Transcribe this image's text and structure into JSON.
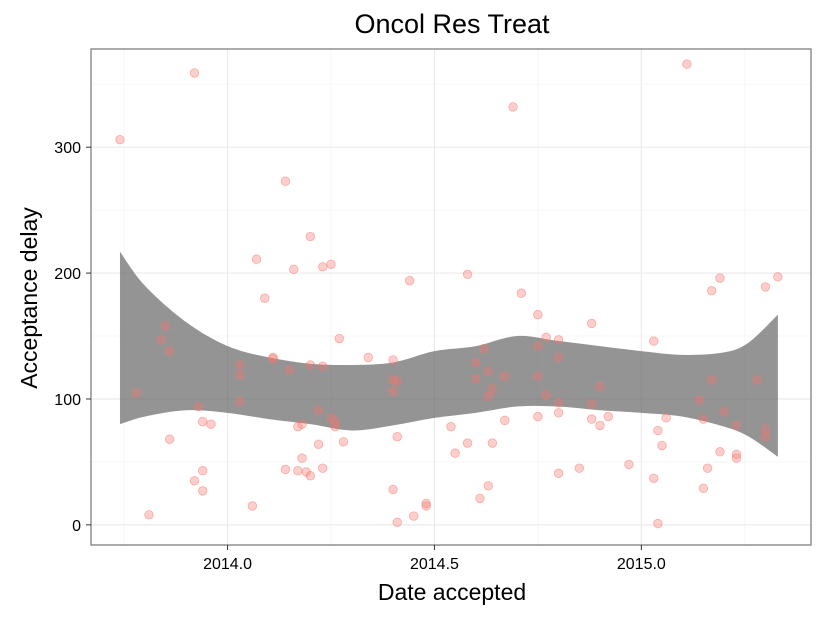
{
  "chart_data": {
    "type": "scatter",
    "title": "Oncol Res Treat",
    "xlabel": "Date accepted",
    "ylabel": "Acceptance delay",
    "xlim": [
      2013.67,
      2015.41
    ],
    "ylim": [
      -16,
      378
    ],
    "x_ticks": [
      2014.0,
      2014.5,
      2015.0
    ],
    "x_tick_labels": [
      "2014.0",
      "2014.5",
      "2015.0"
    ],
    "y_ticks": [
      0,
      100,
      200,
      300
    ],
    "y_tick_labels": [
      "0",
      "100",
      "200",
      "300"
    ],
    "grid": true,
    "point_color": "#f8766d",
    "band_color": "#5a5a5a",
    "points": [
      [
        2013.74,
        306
      ],
      [
        2013.78,
        105
      ],
      [
        2013.81,
        8
      ],
      [
        2013.84,
        147
      ],
      [
        2013.85,
        158
      ],
      [
        2013.86,
        138
      ],
      [
        2013.86,
        68
      ],
      [
        2013.92,
        359
      ],
      [
        2013.92,
        35
      ],
      [
        2013.93,
        94
      ],
      [
        2013.94,
        82
      ],
      [
        2013.94,
        43
      ],
      [
        2013.94,
        27
      ],
      [
        2013.96,
        80
      ],
      [
        2014.03,
        127
      ],
      [
        2014.03,
        119
      ],
      [
        2014.03,
        98
      ],
      [
        2014.06,
        15
      ],
      [
        2014.07,
        211
      ],
      [
        2014.09,
        180
      ],
      [
        2014.11,
        133
      ],
      [
        2014.11,
        132
      ],
      [
        2014.14,
        273
      ],
      [
        2014.14,
        44
      ],
      [
        2014.15,
        123
      ],
      [
        2014.16,
        203
      ],
      [
        2014.17,
        78
      ],
      [
        2014.17,
        43
      ],
      [
        2014.18,
        80
      ],
      [
        2014.18,
        53
      ],
      [
        2014.19,
        42
      ],
      [
        2014.2,
        229
      ],
      [
        2014.2,
        127
      ],
      [
        2014.2,
        39
      ],
      [
        2014.22,
        64
      ],
      [
        2014.22,
        91
      ],
      [
        2014.23,
        205
      ],
      [
        2014.23,
        126
      ],
      [
        2014.23,
        45
      ],
      [
        2014.25,
        207
      ],
      [
        2014.25,
        85
      ],
      [
        2014.26,
        82
      ],
      [
        2014.26,
        78
      ],
      [
        2014.27,
        148
      ],
      [
        2014.28,
        66
      ],
      [
        2014.34,
        133
      ],
      [
        2014.4,
        115
      ],
      [
        2014.4,
        131
      ],
      [
        2014.4,
        106
      ],
      [
        2014.4,
        28
      ],
      [
        2014.41,
        114
      ],
      [
        2014.41,
        70
      ],
      [
        2014.41,
        2
      ],
      [
        2014.44,
        194
      ],
      [
        2014.45,
        7
      ],
      [
        2014.48,
        17
      ],
      [
        2014.48,
        15
      ],
      [
        2014.54,
        78
      ],
      [
        2014.55,
        57
      ],
      [
        2014.58,
        199
      ],
      [
        2014.58,
        65
      ],
      [
        2014.6,
        129
      ],
      [
        2014.6,
        116
      ],
      [
        2014.61,
        21
      ],
      [
        2014.62,
        140
      ],
      [
        2014.63,
        122
      ],
      [
        2014.63,
        102
      ],
      [
        2014.63,
        31
      ],
      [
        2014.64,
        108
      ],
      [
        2014.64,
        65
      ],
      [
        2014.67,
        118
      ],
      [
        2014.67,
        83
      ],
      [
        2014.69,
        332
      ],
      [
        2014.71,
        184
      ],
      [
        2014.75,
        167
      ],
      [
        2014.75,
        142
      ],
      [
        2014.75,
        118
      ],
      [
        2014.75,
        86
      ],
      [
        2014.77,
        149
      ],
      [
        2014.77,
        103
      ],
      [
        2014.8,
        147
      ],
      [
        2014.8,
        133
      ],
      [
        2014.8,
        97
      ],
      [
        2014.8,
        89
      ],
      [
        2014.8,
        41
      ],
      [
        2014.85,
        45
      ],
      [
        2014.88,
        160
      ],
      [
        2014.88,
        96
      ],
      [
        2014.88,
        84
      ],
      [
        2014.9,
        110
      ],
      [
        2014.9,
        79
      ],
      [
        2014.92,
        86
      ],
      [
        2014.97,
        48
      ],
      [
        2015.03,
        146
      ],
      [
        2015.03,
        37
      ],
      [
        2015.04,
        75
      ],
      [
        2015.04,
        1
      ],
      [
        2015.05,
        63
      ],
      [
        2015.06,
        85
      ],
      [
        2015.11,
        366
      ],
      [
        2015.14,
        99
      ],
      [
        2015.15,
        84
      ],
      [
        2015.15,
        29
      ],
      [
        2015.16,
        45
      ],
      [
        2015.17,
        186
      ],
      [
        2015.17,
        115
      ],
      [
        2015.19,
        196
      ],
      [
        2015.19,
        58
      ],
      [
        2015.2,
        90
      ],
      [
        2015.23,
        79
      ],
      [
        2015.23,
        53
      ],
      [
        2015.23,
        56
      ],
      [
        2015.28,
        115
      ],
      [
        2015.3,
        189
      ],
      [
        2015.3,
        76
      ],
      [
        2015.3,
        70
      ],
      [
        2015.33,
        197
      ]
    ],
    "band_upper": [
      [
        2013.74,
        217
      ],
      [
        2013.8,
        190
      ],
      [
        2013.9,
        161
      ],
      [
        2014.0,
        142
      ],
      [
        2014.1,
        133
      ],
      [
        2014.2,
        128
      ],
      [
        2014.3,
        127
      ],
      [
        2014.4,
        129
      ],
      [
        2014.5,
        138
      ],
      [
        2014.6,
        142
      ],
      [
        2014.7,
        150
      ],
      [
        2014.8,
        146
      ],
      [
        2014.9,
        142
      ],
      [
        2015.0,
        138
      ],
      [
        2015.1,
        135
      ],
      [
        2015.2,
        137
      ],
      [
        2015.26,
        145
      ],
      [
        2015.33,
        167
      ]
    ],
    "band_lower": [
      [
        2013.74,
        80
      ],
      [
        2013.8,
        86
      ],
      [
        2013.9,
        91
      ],
      [
        2014.0,
        89
      ],
      [
        2014.1,
        84
      ],
      [
        2014.2,
        80
      ],
      [
        2014.3,
        75
      ],
      [
        2014.4,
        79
      ],
      [
        2014.5,
        85
      ],
      [
        2014.6,
        89
      ],
      [
        2014.7,
        94
      ],
      [
        2014.8,
        94
      ],
      [
        2014.9,
        91
      ],
      [
        2015.0,
        89
      ],
      [
        2015.1,
        86
      ],
      [
        2015.2,
        78
      ],
      [
        2015.26,
        70
      ],
      [
        2015.33,
        54
      ]
    ]
  }
}
